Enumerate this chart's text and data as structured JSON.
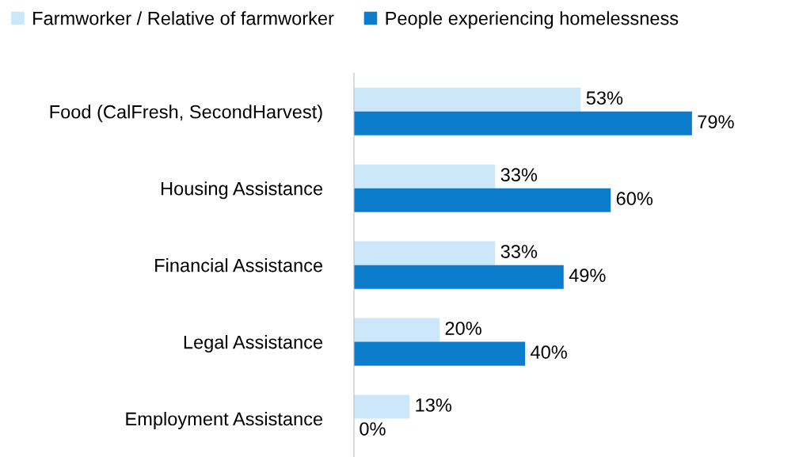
{
  "chart_data": {
    "type": "bar",
    "orientation": "horizontal",
    "data_labels": true,
    "legend": "top left",
    "grid": false,
    "categories": [
      "Food (CalFresh, SecondHarvest)",
      "Housing Assistance",
      "Financial Assistance",
      "Legal Assistance",
      "Employment Assistance"
    ],
    "series": [
      {
        "name": "Farmworker / Relative of farmworker",
        "color": "#cce7fa",
        "values": [
          53,
          33,
          33,
          20,
          13
        ],
        "value_labels": [
          "53%",
          "33%",
          "33%",
          "20%",
          "13%"
        ]
      },
      {
        "name": "People experiencing homelessness",
        "color": "#0b7dcc",
        "values": [
          79,
          60,
          49,
          40,
          0
        ],
        "value_labels": [
          "79%",
          "60%",
          "49%",
          "40%",
          "0%"
        ]
      }
    ]
  }
}
